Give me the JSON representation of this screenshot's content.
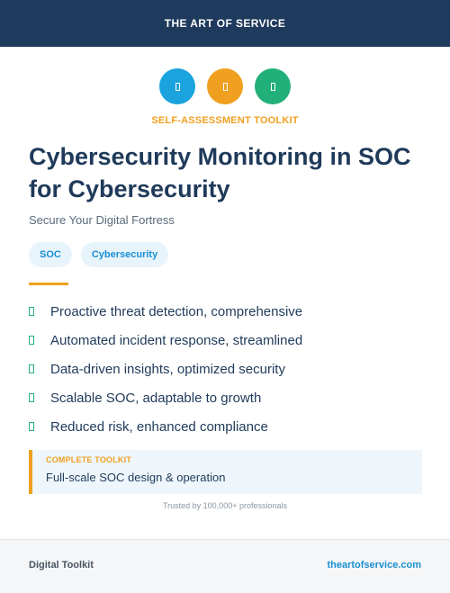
{
  "header": {
    "brand": "THE ART OF SERVICE"
  },
  "icons": [
    "shield-icon",
    "lock-icon",
    "check-icon"
  ],
  "kicker": "SELF-ASSESSMENT TOOLKIT",
  "title": "Cybersecurity Monitoring in SOC for Cybersecurity",
  "subtitle": "Secure Your Digital Fortress",
  "tags": [
    "SOC",
    "Cybersecurity"
  ],
  "features": [
    "Proactive threat detection, comprehensive",
    "Automated incident response, streamlined",
    "Data-driven insights, optimized security",
    "Scalable SOC, adaptable to growth",
    "Reduced risk, enhanced compliance"
  ],
  "callout": {
    "label": "COMPLETE TOOLKIT",
    "text": "Full-scale SOC design & operation"
  },
  "trusted": "Trusted by 100,000+ professionals",
  "footer": {
    "left": "Digital Toolkit",
    "right": "theartofservice.com"
  },
  "colors": {
    "navy": "#1e3a5c",
    "accent_orange": "#f0a020",
    "accent_blue": "#1aa3dd",
    "accent_green": "#22b07a"
  }
}
